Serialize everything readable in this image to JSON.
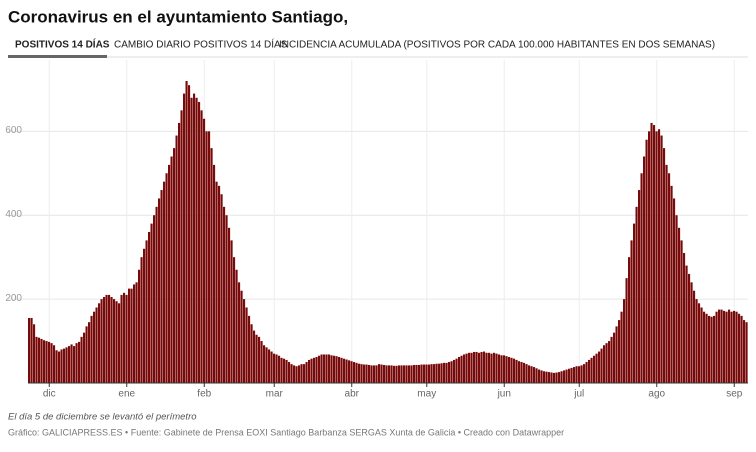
{
  "title": "Coronavirus en el ayuntamiento Santiago,",
  "tabs": [
    "POSITIVOS 14 DÍAS",
    "CAMBIO DIARIO POSITIVOS 14 DÍAS",
    "INCIDENCIA ACUMULADA (POSITIVOS POR CADA 100.000 HABITANTES EN DOS SEMANAS)"
  ],
  "note": "El día 5 de diciembre se levantó el perímetro",
  "credits": "Gráfico: GALICIAPRESS.ES • Fuente: Gabinete de Prensa EOXI Santiago Barbanza SERGAS Xunta de Galicia • Creado con Datawrapper",
  "chart_data": {
    "type": "bar",
    "color": "#780a0a",
    "grid": true,
    "ylim": [
      0,
      720
    ],
    "yticks": [
      200,
      400,
      600
    ],
    "categories": [
      null,
      null,
      null,
      null,
      null,
      null,
      null,
      null,
      "dic",
      null,
      null,
      null,
      null,
      null,
      null,
      null,
      null,
      null,
      null,
      null,
      null,
      null,
      null,
      null,
      null,
      null,
      null,
      null,
      null,
      null,
      null,
      null,
      null,
      null,
      null,
      null,
      null,
      null,
      null,
      "ene",
      null,
      null,
      null,
      null,
      null,
      null,
      null,
      null,
      null,
      null,
      null,
      null,
      null,
      null,
      null,
      null,
      null,
      null,
      null,
      null,
      null,
      null,
      null,
      null,
      null,
      null,
      null,
      null,
      null,
      null,
      "feb",
      null,
      null,
      null,
      null,
      null,
      null,
      null,
      null,
      null,
      null,
      null,
      null,
      null,
      null,
      null,
      null,
      null,
      null,
      null,
      null,
      null,
      null,
      null,
      null,
      null,
      null,
      null,
      "mar",
      null,
      null,
      null,
      null,
      null,
      null,
      null,
      null,
      null,
      null,
      null,
      null,
      null,
      null,
      null,
      null,
      null,
      null,
      null,
      null,
      null,
      null,
      null,
      null,
      null,
      null,
      null,
      null,
      null,
      null,
      "abr",
      null,
      null,
      null,
      null,
      null,
      null,
      null,
      null,
      null,
      null,
      null,
      null,
      null,
      null,
      null,
      null,
      null,
      null,
      null,
      null,
      null,
      null,
      null,
      null,
      null,
      null,
      null,
      null,
      null,
      "may",
      null,
      null,
      null,
      null,
      null,
      null,
      null,
      null,
      null,
      null,
      null,
      null,
      null,
      null,
      null,
      null,
      null,
      null,
      null,
      null,
      null,
      null,
      null,
      null,
      null,
      null,
      null,
      null,
      null,
      null,
      "jun",
      null,
      null,
      null,
      null,
      null,
      null,
      null,
      null,
      null,
      null,
      null,
      null,
      null,
      null,
      null,
      null,
      null,
      null,
      null,
      null,
      null,
      null,
      null,
      null,
      null,
      null,
      null,
      null,
      null,
      "jul",
      null,
      null,
      null,
      null,
      null,
      null,
      null,
      null,
      null,
      null,
      null,
      null,
      null,
      null,
      null,
      null,
      null,
      null,
      null,
      null,
      null,
      null,
      null,
      null,
      null,
      null,
      null,
      null,
      null,
      null,
      "ago",
      null,
      null,
      null,
      null,
      null,
      null,
      null,
      null,
      null,
      null,
      null,
      null,
      null,
      null,
      null,
      null,
      null,
      null,
      null,
      null,
      null,
      null,
      null,
      null,
      null,
      null,
      null,
      null,
      null,
      null,
      "sep",
      null,
      null,
      null,
      null,
      null
    ],
    "values": [
      155,
      155,
      140,
      110,
      108,
      105,
      102,
      100,
      98,
      95,
      90,
      78,
      75,
      80,
      82,
      85,
      88,
      92,
      88,
      95,
      98,
      110,
      120,
      135,
      145,
      160,
      170,
      180,
      190,
      200,
      205,
      210,
      210,
      205,
      200,
      195,
      190,
      210,
      215,
      210,
      225,
      225,
      235,
      240,
      270,
      300,
      320,
      340,
      360,
      380,
      400,
      420,
      440,
      460,
      480,
      500,
      520,
      540,
      560,
      590,
      620,
      650,
      690,
      720,
      710,
      680,
      690,
      680,
      670,
      650,
      630,
      600,
      600,
      560,
      520,
      480,
      470,
      450,
      420,
      400,
      370,
      340,
      300,
      270,
      240,
      220,
      200,
      180,
      160,
      140,
      125,
      115,
      110,
      100,
      90,
      85,
      80,
      75,
      70,
      68,
      65,
      60,
      58,
      55,
      50,
      45,
      42,
      40,
      42,
      45,
      45,
      50,
      55,
      58,
      60,
      62,
      65,
      68,
      68,
      68,
      68,
      66,
      65,
      64,
      62,
      60,
      58,
      56,
      54,
      52,
      50,
      48,
      46,
      45,
      44,
      44,
      43,
      42,
      42,
      42,
      45,
      44,
      43,
      42,
      42,
      42,
      41,
      41,
      42,
      42,
      42,
      42,
      42,
      42,
      43,
      43,
      43,
      44,
      44,
      44,
      44,
      45,
      45,
      46,
      46,
      47,
      48,
      48,
      50,
      52,
      55,
      58,
      62,
      65,
      68,
      70,
      72,
      72,
      74,
      74,
      72,
      74,
      75,
      72,
      72,
      70,
      72,
      70,
      68,
      66,
      66,
      64,
      62,
      60,
      58,
      55,
      52,
      50,
      48,
      45,
      42,
      40,
      38,
      35,
      32,
      30,
      28,
      27,
      26,
      25,
      24,
      25,
      26,
      28,
      30,
      32,
      34,
      36,
      38,
      40,
      40,
      42,
      45,
      50,
      55,
      60,
      65,
      70,
      75,
      82,
      90,
      95,
      100,
      110,
      120,
      135,
      150,
      170,
      200,
      250,
      300,
      340,
      380,
      420,
      460,
      500,
      540,
      580,
      600,
      620,
      615,
      600,
      605,
      590,
      560,
      520,
      500,
      470,
      440,
      400,
      370,
      340,
      310,
      280,
      260,
      240,
      220,
      200,
      190,
      180,
      170,
      165,
      160,
      158,
      160,
      170,
      175,
      175,
      172,
      170,
      175,
      170,
      172,
      170,
      165,
      160,
      150,
      145
    ]
  }
}
